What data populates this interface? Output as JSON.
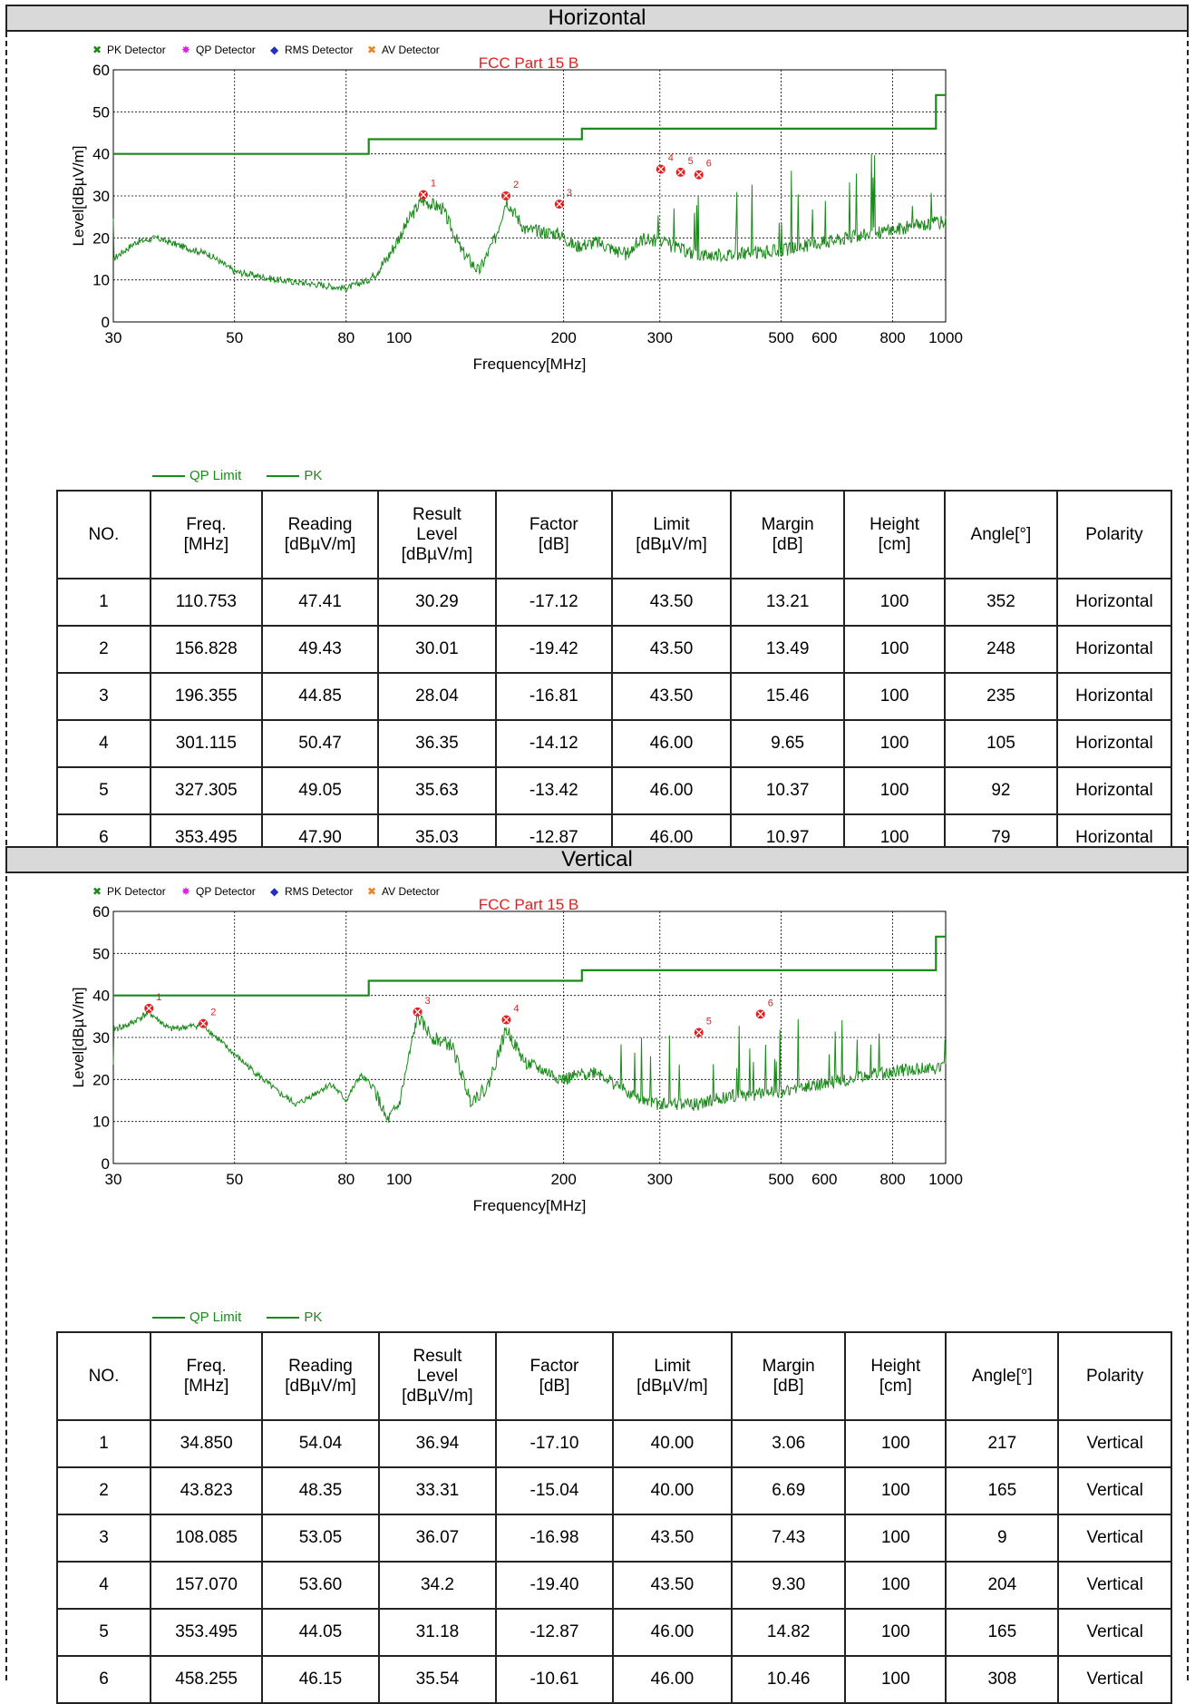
{
  "sections": [
    {
      "title": "Horizontal",
      "chart": {
        "title": "FCC Part 15 B",
        "legend": [
          "PK Detector",
          "QP Detector",
          "RMS Detector",
          "AV Detector"
        ],
        "bottom_legend": [
          "QP Limit",
          "PK"
        ]
      }
    },
    {
      "title": "Vertical",
      "chart": {
        "title": "FCC Part 15 B",
        "legend": [
          "PK Detector",
          "QP Detector",
          "RMS Detector",
          "AV Detector"
        ],
        "bottom_legend": [
          "QP Limit",
          "PK"
        ]
      }
    }
  ],
  "table_headers": [
    "NO.",
    "Freq.\n[MHz]",
    "Reading\n[dBµV/m]",
    "Result\nLevel\n[dBµV/m]",
    "Factor\n[dB]",
    "Limit\n[dBµV/m]",
    "Margin\n[dB]",
    "Height\n[cm]",
    "Angle[°]",
    "Polarity"
  ],
  "tables": [
    [
      [
        "1",
        "110.753",
        "47.41",
        "30.29",
        "-17.12",
        "43.50",
        "13.21",
        "100",
        "352",
        "Horizontal"
      ],
      [
        "2",
        "156.828",
        "49.43",
        "30.01",
        "-19.42",
        "43.50",
        "13.49",
        "100",
        "248",
        "Horizontal"
      ],
      [
        "3",
        "196.355",
        "44.85",
        "28.04",
        "-16.81",
        "43.50",
        "15.46",
        "100",
        "235",
        "Horizontal"
      ],
      [
        "4",
        "301.115",
        "50.47",
        "36.35",
        "-14.12",
        "46.00",
        "9.65",
        "100",
        "105",
        "Horizontal"
      ],
      [
        "5",
        "327.305",
        "49.05",
        "35.63",
        "-13.42",
        "46.00",
        "10.37",
        "100",
        "92",
        "Horizontal"
      ],
      [
        "6",
        "353.495",
        "47.90",
        "35.03",
        "-12.87",
        "46.00",
        "10.97",
        "100",
        "79",
        "Horizontal"
      ]
    ],
    [
      [
        "1",
        "34.850",
        "54.04",
        "36.94",
        "-17.10",
        "40.00",
        "3.06",
        "100",
        "217",
        "Vertical"
      ],
      [
        "2",
        "43.823",
        "48.35",
        "33.31",
        "-15.04",
        "40.00",
        "6.69",
        "100",
        "165",
        "Vertical"
      ],
      [
        "3",
        "108.085",
        "53.05",
        "36.07",
        "-16.98",
        "43.50",
        "7.43",
        "100",
        "9",
        "Vertical"
      ],
      [
        "4",
        "157.070",
        "53.60",
        "34.2",
        "-19.40",
        "43.50",
        "9.30",
        "100",
        "204",
        "Vertical"
      ],
      [
        "5",
        "353.495",
        "44.05",
        "31.18",
        "-12.87",
        "46.00",
        "14.82",
        "100",
        "165",
        "Vertical"
      ],
      [
        "6",
        "458.255",
        "46.15",
        "35.54",
        "-10.61",
        "46.00",
        "10.46",
        "100",
        "308",
        "Vertical"
      ]
    ]
  ],
  "chart_data": [
    {
      "type": "line",
      "title": "FCC Part 15 B",
      "xlabel": "Frequency[MHz]",
      "ylabel": "Level[dBµV/m]",
      "x_scale": "log",
      "xlim": [
        30,
        1000
      ],
      "ylim": [
        0,
        60
      ],
      "x_ticks": [
        30,
        50,
        80,
        100,
        200,
        300,
        500,
        600,
        800,
        1000
      ],
      "y_ticks": [
        0,
        10,
        20,
        30,
        40,
        50,
        60
      ],
      "grid": true,
      "legend": [
        "PK Detector",
        "QP Detector",
        "RMS Detector",
        "AV Detector",
        "QP Limit",
        "PK"
      ],
      "limit_line": {
        "name": "QP Limit",
        "x": [
          30,
          88,
          88,
          216,
          216,
          960,
          960,
          1000
        ],
        "y": [
          40,
          40,
          43.5,
          43.5,
          46,
          46,
          54,
          54
        ]
      },
      "pk_trace": {
        "name": "PK",
        "x": [
          30,
          33,
          36,
          40,
          45,
          50,
          60,
          70,
          80,
          88,
          95,
          105,
          110,
          120,
          130,
          140,
          150,
          157,
          170,
          196,
          210,
          230,
          260,
          280,
          300,
          350,
          400,
          500,
          600,
          800,
          1000
        ],
        "y": [
          15,
          19,
          20,
          18,
          16,
          12,
          10,
          9,
          8,
          10,
          15,
          25,
          29,
          27,
          17,
          12,
          20,
          29,
          22,
          21,
          18,
          19,
          16,
          20,
          19,
          16,
          16,
          17,
          19,
          22,
          24
        ]
      },
      "markers": [
        {
          "label": "1",
          "x": 110.753,
          "y": 30.29
        },
        {
          "label": "2",
          "x": 156.828,
          "y": 30.01
        },
        {
          "label": "3",
          "x": 196.355,
          "y": 28.04
        },
        {
          "label": "4",
          "x": 301.115,
          "y": 36.35
        },
        {
          "label": "5",
          "x": 327.305,
          "y": 35.63
        },
        {
          "label": "6",
          "x": 353.495,
          "y": 35.03
        }
      ]
    },
    {
      "type": "line",
      "title": "FCC Part 15 B",
      "xlabel": "Frequency[MHz]",
      "ylabel": "Level[dBµV/m]",
      "x_scale": "log",
      "xlim": [
        30,
        1000
      ],
      "ylim": [
        0,
        60
      ],
      "x_ticks": [
        30,
        50,
        80,
        100,
        200,
        300,
        500,
        600,
        800,
        1000
      ],
      "y_ticks": [
        0,
        10,
        20,
        30,
        40,
        50,
        60
      ],
      "grid": true,
      "legend": [
        "PK Detector",
        "QP Detector",
        "RMS Detector",
        "AV Detector",
        "QP Limit",
        "PK"
      ],
      "limit_line": {
        "name": "QP Limit",
        "x": [
          30,
          88,
          88,
          216,
          216,
          960,
          960,
          1000
        ],
        "y": [
          40,
          40,
          43.5,
          43.5,
          46,
          46,
          54,
          54
        ]
      },
      "pk_trace": {
        "name": "PK",
        "x": [
          30,
          32,
          34.85,
          38,
          43.823,
          48,
          52,
          60,
          65,
          75,
          80,
          85,
          90,
          95,
          100,
          108,
          115,
          125,
          135,
          145,
          157,
          170,
          200,
          230,
          260,
          300,
          350,
          400,
          500,
          600,
          800,
          1000
        ],
        "y": [
          32,
          33,
          36,
          32,
          33,
          28,
          24,
          17,
          14,
          19,
          15,
          21,
          18,
          10,
          14,
          35,
          30,
          28,
          15,
          18,
          32,
          24,
          20,
          22,
          17,
          14,
          14,
          16,
          17,
          19,
          22,
          23
        ]
      },
      "markers": [
        {
          "label": "1",
          "x": 34.85,
          "y": 36.94
        },
        {
          "label": "2",
          "x": 43.823,
          "y": 33.31
        },
        {
          "label": "3",
          "x": 108.085,
          "y": 36.07
        },
        {
          "label": "4",
          "x": 157.07,
          "y": 34.2
        },
        {
          "label": "5",
          "x": 353.495,
          "y": 31.18
        },
        {
          "label": "6",
          "x": 458.255,
          "y": 35.54
        }
      ]
    }
  ],
  "colors": {
    "trace": "#1a8a1a",
    "limit": "#1a8a1a",
    "marker": "#e02020",
    "title": "#e02020",
    "qp": "#e020e0",
    "rms": "#2030c0",
    "av": "#f08020"
  }
}
